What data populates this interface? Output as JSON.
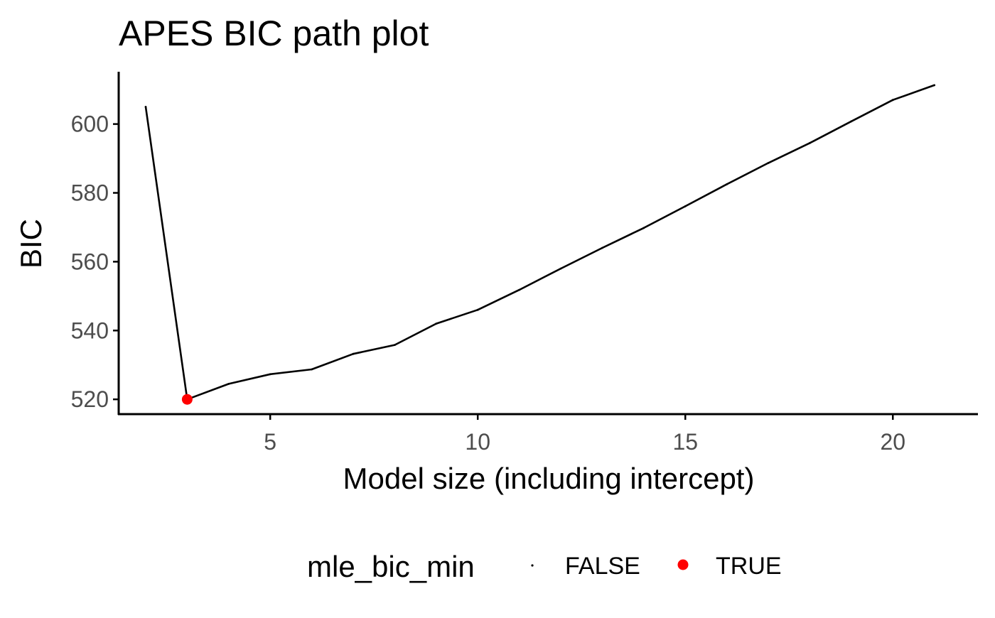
{
  "chart_data": {
    "type": "line",
    "title": "APES BIC path plot",
    "xlabel": "Model size (including intercept)",
    "ylabel": "BIC",
    "x": [
      2,
      3,
      4,
      5,
      6,
      7,
      8,
      9,
      10,
      11,
      12,
      13,
      14,
      15,
      16,
      17,
      18,
      19,
      20,
      21
    ],
    "y": [
      605,
      520,
      524.5,
      527.3,
      528.7,
      533.2,
      535.8,
      542,
      546,
      551.8,
      558,
      564,
      569.8,
      576.1,
      582.5,
      588.7,
      594.5,
      600.8,
      607,
      611.3
    ],
    "highlight": [
      false,
      true,
      false,
      false,
      false,
      false,
      false,
      false,
      false,
      false,
      false,
      false,
      false,
      false,
      false,
      false,
      false,
      false,
      false,
      false
    ],
    "xlim": [
      1.35,
      22.05
    ],
    "ylim": [
      515.7,
      615.2
    ],
    "xticks": [
      5,
      10,
      15,
      20
    ],
    "yticks": [
      520,
      540,
      560,
      580,
      600
    ],
    "grid": false,
    "legend": {
      "title": "mle_bic_min",
      "position": "bottom",
      "entries": [
        {
          "label": "FALSE",
          "color": "#000000",
          "marker": "small-dot"
        },
        {
          "label": "TRUE",
          "color": "#ff0000",
          "marker": "large-dot"
        }
      ]
    },
    "colors": {
      "line": "#000000",
      "highlight": "#ff0000",
      "tick_text": "#4d4d4d",
      "axis": "#000000"
    }
  }
}
